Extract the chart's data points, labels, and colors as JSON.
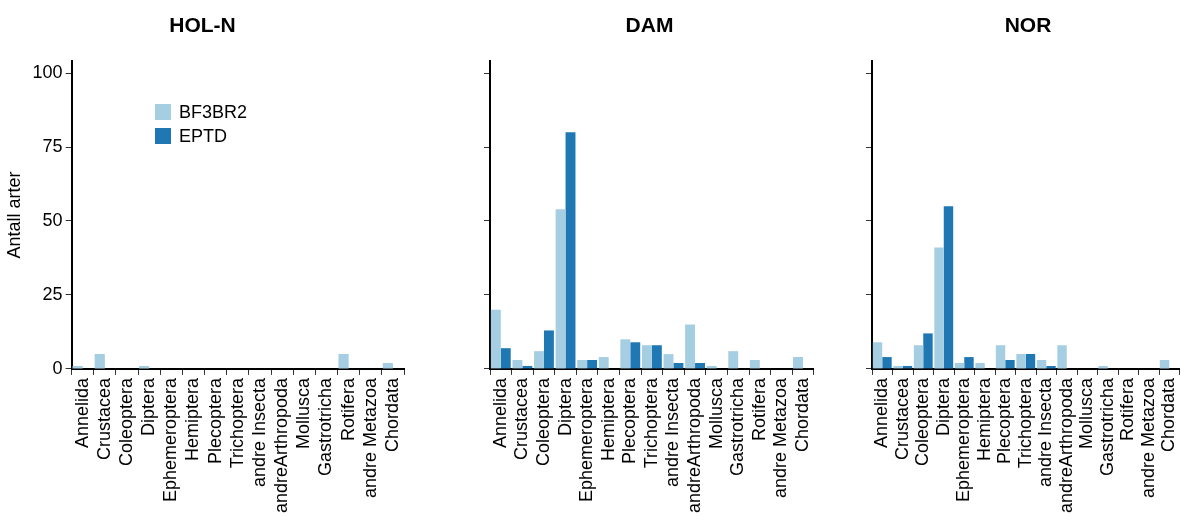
{
  "chart_data": [
    {
      "type": "bar",
      "title": "HOL-N",
      "ylabel": "Antall arter",
      "categories": [
        "Annelida",
        "Crustacea",
        "Coleoptera",
        "Diptera",
        "Ephemeroptera",
        "Hemiptera",
        "Plecoptera",
        "Trichoptera",
        "andre Insecta",
        "andreArthropoda",
        "Mollusca",
        "Gastrotricha",
        "Rotifera",
        "andre Metazoa",
        "Chordata"
      ],
      "series": [
        {
          "name": "BF3BR2",
          "color": "#a6cee3",
          "values": [
            1,
            5,
            0,
            1,
            0,
            0,
            0,
            0,
            0,
            0,
            0,
            0,
            5,
            0,
            2
          ]
        },
        {
          "name": "EPTD",
          "color": "#1f78b4",
          "values": [
            0,
            0,
            0,
            0,
            0,
            0,
            0,
            0,
            0,
            0,
            0,
            0,
            0,
            0,
            0
          ]
        }
      ],
      "ylim": [
        0,
        104
      ],
      "yticks": [
        0,
        25,
        50,
        75,
        100
      ],
      "legend": "top left"
    },
    {
      "type": "bar",
      "title": "DAM",
      "categories": [
        "Annelida",
        "Crustacea",
        "Coleoptera",
        "Diptera",
        "Ephemeroptera",
        "Hemiptera",
        "Plecoptera",
        "Trichoptera",
        "andre Insecta",
        "andreArthropoda",
        "Mollusca",
        "Gastrotricha",
        "Rotifera",
        "andre Metazoa",
        "Chordata"
      ],
      "series": [
        {
          "color": "#a6cee3",
          "values": [
            20,
            3,
            6,
            54,
            3,
            4,
            10,
            8,
            5,
            15,
            1,
            6,
            3,
            0,
            4
          ]
        },
        {
          "color": "#1f78b4",
          "values": [
            7,
            1,
            13,
            80,
            3,
            0,
            9,
            8,
            2,
            2,
            0,
            0,
            0,
            0,
            0
          ]
        }
      ],
      "ylim": [
        0,
        104
      ],
      "yticks": [
        0,
        25,
        50,
        75,
        100
      ],
      "tick_labels": "x"
    },
    {
      "type": "bar",
      "title": "NOR",
      "categories": [
        "Annelida",
        "Crustacea",
        "Coleoptera",
        "Diptera",
        "Ephemeroptera",
        "Hemiptera",
        "Plecoptera",
        "Trichoptera",
        "andre Insecta",
        "andreArthropoda",
        "Mollusca",
        "Gastrotricha",
        "Rotifera",
        "andre Metazoa",
        "Chordata"
      ],
      "series": [
        {
          "color": "#a6cee3",
          "values": [
            9,
            1,
            8,
            41,
            2,
            2,
            8,
            5,
            3,
            8,
            0,
            1,
            0,
            0,
            3
          ]
        },
        {
          "color": "#1f78b4",
          "values": [
            4,
            1,
            12,
            55,
            4,
            0,
            3,
            5,
            1,
            0,
            0,
            0,
            0,
            0,
            0
          ]
        }
      ],
      "ylim": [
        0,
        104
      ],
      "yticks": [
        0,
        25,
        50,
        75,
        100
      ],
      "tick_labels": "x"
    }
  ]
}
